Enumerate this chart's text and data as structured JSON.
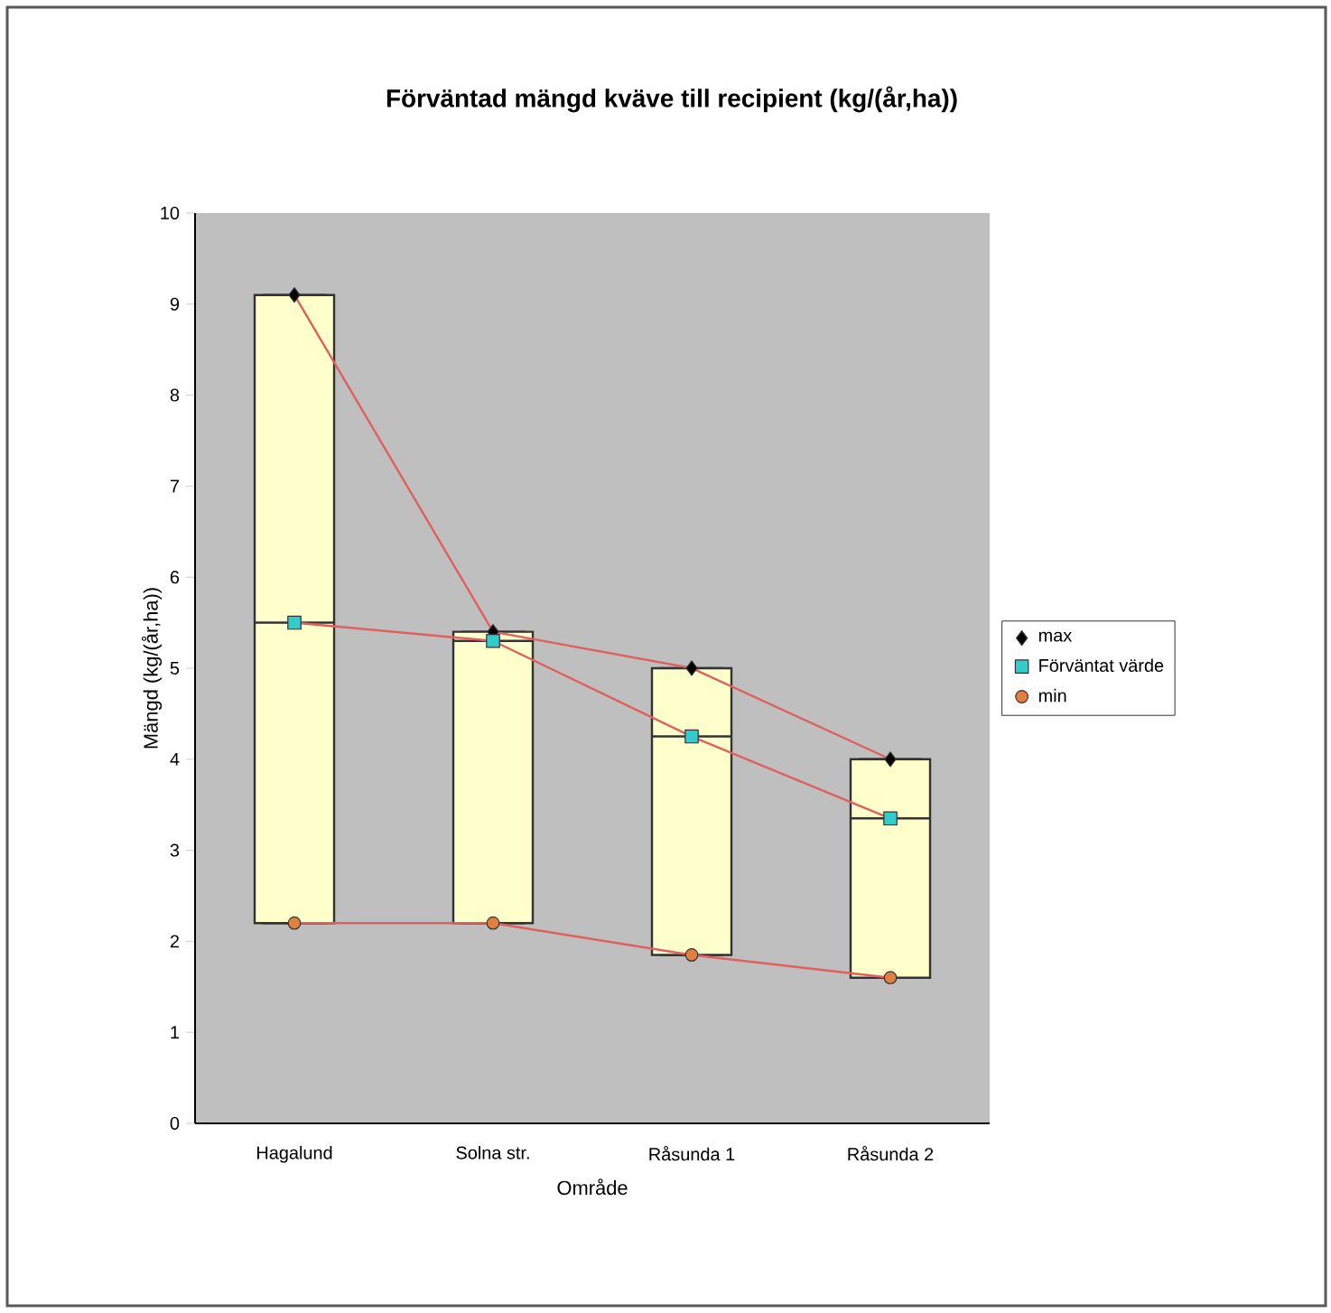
{
  "chart_data": {
    "type": "box",
    "title": "Förväntad mängd kväve till recipient (kg/(år,ha))",
    "xlabel": "Område",
    "ylabel": "Mängd (kg/(år,ha))",
    "categories": [
      "Hagalund",
      "Solna str.",
      "Råsunda 1",
      "Råsunda 2"
    ],
    "color": "#ffffcc",
    "boxes": [
      {
        "low": 2.2,
        "q1": 2.2,
        "median": 5.5,
        "q3": 9.1,
        "high": 9.1
      },
      {
        "low": 2.2,
        "q1": 2.2,
        "median": 5.3,
        "q3": 5.4,
        "high": 5.4
      },
      {
        "low": 1.85,
        "q1": 1.85,
        "median": 4.25,
        "q3": 5.0,
        "high": 5.0
      },
      {
        "low": 1.6,
        "q1": 1.6,
        "median": 3.35,
        "q3": 4.0,
        "high": 4.0
      }
    ],
    "series": [
      {
        "type": "line",
        "name": "max",
        "color": "#000000",
        "marker": "diamond",
        "values": [
          9.1,
          5.4,
          5.0,
          4.0
        ]
      },
      {
        "type": "line",
        "name": "Förväntat värde",
        "color": "#33cccc",
        "marker": "square",
        "values": [
          5.5,
          5.3,
          4.25,
          3.35
        ]
      },
      {
        "type": "line",
        "name": "min",
        "color": "#e08040",
        "marker": "circle",
        "values": [
          2.2,
          2.2,
          1.85,
          1.6
        ]
      }
    ],
    "ylim": [
      0,
      10
    ],
    "yticks": [
      0,
      1,
      2,
      3,
      4,
      5,
      6,
      7,
      8,
      9,
      10
    ],
    "grid": false,
    "legend": "right",
    "line_style": "solid"
  }
}
